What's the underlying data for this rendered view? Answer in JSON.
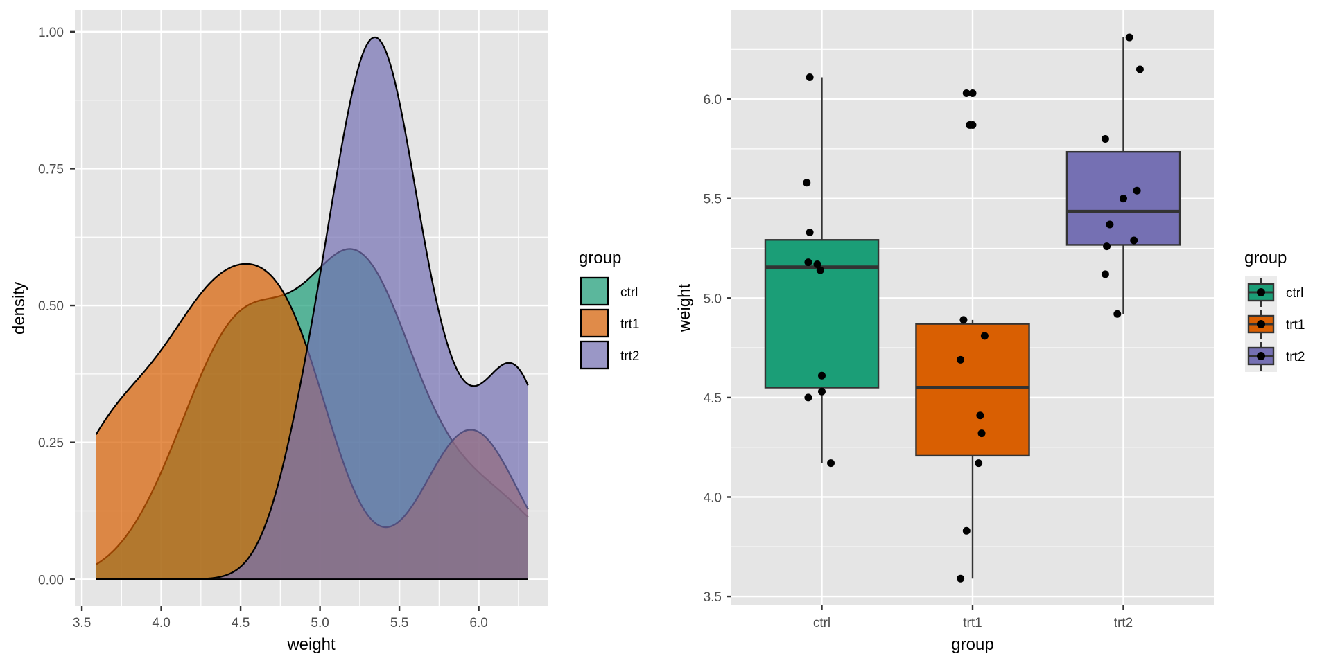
{
  "colors": {
    "panel_bg": "#e5e5e5",
    "grid": "#ffffff",
    "ctrl": "#1b9e77",
    "trt1": "#d95f02",
    "trt2": "#7570b3",
    "outline": "#000000",
    "box_outline": "#333333"
  },
  "chart_data": [
    {
      "type": "area",
      "subtype": "density",
      "title": "",
      "xlabel": "weight",
      "ylabel": "density",
      "xlim": [
        3.456,
        6.434
      ],
      "ylim": [
        -0.049,
        1.039
      ],
      "x_ticks": [
        3.5,
        4.0,
        4.5,
        5.0,
        5.5,
        6.0
      ],
      "x_tick_labels": [
        "3.5",
        "4.0",
        "4.5",
        "5.0",
        "5.5",
        "6.0"
      ],
      "y_ticks": [
        0.0,
        0.25,
        0.5,
        0.75,
        1.0
      ],
      "y_tick_labels": [
        "0.00",
        "0.25",
        "0.50",
        "0.75",
        "1.00"
      ],
      "grid": true,
      "fill_alpha": 0.7,
      "legend": {
        "title": "group",
        "position": "right",
        "entries": [
          "ctrl",
          "trt1",
          "trt2"
        ]
      },
      "series": [
        {
          "name": "ctrl",
          "values": [
            4.17,
            5.58,
            5.18,
            6.11,
            4.5,
            4.61,
            5.17,
            4.53,
            5.33,
            5.14
          ]
        },
        {
          "name": "trt1",
          "values": [
            4.81,
            4.17,
            4.41,
            3.59,
            5.87,
            3.83,
            6.03,
            4.89,
            4.32,
            4.69
          ]
        },
        {
          "name": "trt2",
          "values": [
            6.31,
            5.12,
            5.54,
            5.5,
            5.37,
            5.29,
            4.92,
            6.15,
            5.8,
            5.26
          ]
        }
      ],
      "density_range": [
        3.59,
        6.31
      ]
    },
    {
      "type": "box",
      "title": "",
      "xlabel": "group",
      "ylabel": "weight",
      "categories": [
        "ctrl",
        "trt1",
        "trt2"
      ],
      "ylim": [
        3.455,
        6.446
      ],
      "y_ticks": [
        3.5,
        4.0,
        4.5,
        5.0,
        5.5,
        6.0
      ],
      "y_tick_labels": [
        "3.5",
        "4.0",
        "4.5",
        "5.0",
        "5.5",
        "6.0"
      ],
      "grid": true,
      "legend": {
        "title": "group",
        "position": "right",
        "entries": [
          "ctrl",
          "trt1",
          "trt2"
        ]
      },
      "boxes": [
        {
          "name": "ctrl",
          "lower_whisker": 4.17,
          "q1": 4.55,
          "median": 5.155,
          "q3": 5.2925,
          "upper_whisker": 6.11,
          "outliers": []
        },
        {
          "name": "trt1",
          "lower_whisker": 3.59,
          "q1": 4.2075,
          "median": 4.55,
          "q3": 4.87,
          "upper_whisker": 4.89,
          "outliers": [
            5.87,
            6.03
          ]
        },
        {
          "name": "trt2",
          "lower_whisker": 4.92,
          "q1": 5.2675,
          "median": 5.435,
          "q3": 5.735,
          "upper_whisker": 6.31,
          "outliers": []
        }
      ],
      "jitter_points": [
        {
          "group": "ctrl",
          "values": [
            6.11,
            5.58,
            5.33,
            5.18,
            5.17,
            5.14,
            4.61,
            4.53,
            4.5,
            4.17
          ],
          "jitter": [
            -0.08,
            -0.1,
            -0.08,
            -0.09,
            -0.03,
            -0.01,
            0.0,
            0.0,
            -0.09,
            0.06
          ]
        },
        {
          "group": "trt1",
          "values": [
            6.03,
            5.87,
            4.89,
            4.81,
            4.69,
            4.41,
            4.32,
            4.17,
            3.83,
            3.59
          ],
          "jitter": [
            -0.04,
            -0.02,
            -0.06,
            0.08,
            -0.08,
            0.05,
            0.06,
            0.04,
            -0.04,
            -0.08
          ]
        },
        {
          "group": "trt2",
          "values": [
            6.31,
            6.15,
            5.8,
            5.54,
            5.5,
            5.37,
            5.29,
            5.26,
            5.12,
            4.92
          ],
          "jitter": [
            0.04,
            0.11,
            -0.12,
            0.09,
            0.0,
            -0.09,
            0.07,
            -0.11,
            -0.12,
            -0.04
          ]
        }
      ]
    }
  ]
}
